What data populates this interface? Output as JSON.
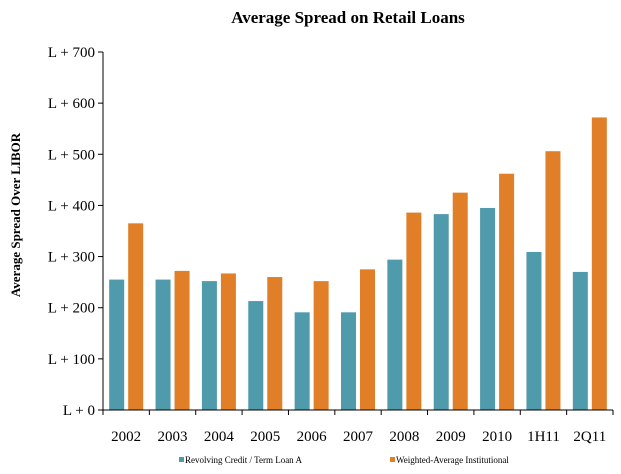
{
  "chart_data": {
    "type": "bar",
    "title": "Average Spread on Retail Loans",
    "ylabel": "Average Spread Over LIBOR",
    "xlabel": "",
    "categories": [
      "2002",
      "2003",
      "2004",
      "2005",
      "2006",
      "2007",
      "2008",
      "2009",
      "2010",
      "1H11",
      "2Q11"
    ],
    "series": [
      {
        "name": "Revolving Credit / Term Loan A",
        "color": "#4f9aab",
        "values": [
          255,
          255,
          252,
          213,
          191,
          191,
          294,
          383,
          395,
          309,
          270
        ]
      },
      {
        "name": "Weighted-Average Institutional",
        "color": "#e07f28",
        "values": [
          365,
          272,
          267,
          260,
          252,
          275,
          386,
          425,
          462,
          506,
          572
        ]
      }
    ],
    "ylim": [
      0,
      700
    ],
    "yticks": [
      0,
      100,
      200,
      300,
      400,
      500,
      600,
      700
    ],
    "yticklabels": [
      "L + 0",
      "L + 100",
      "L + 200",
      "L + 300",
      "L + 400",
      "L + 500",
      "L + 600",
      "L + 700"
    ],
    "grid": false,
    "legend_position": "bottom"
  }
}
